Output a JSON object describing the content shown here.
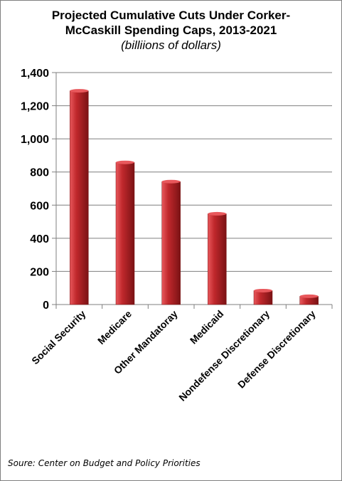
{
  "chart_title": {
    "line1": "Projected Cumulative Cuts Under Corker-",
    "line2": "McCaskill Spending Caps, 2013-2021",
    "subtitle": "(billiions of dollars)"
  },
  "source": "Soure: Center on Budget and Policy Priorities",
  "colors": {
    "bar_light": "#e8585c",
    "bar_mid": "#c0282c",
    "bar_dark": "#7a1214",
    "grid": "#7f7f7f",
    "axis": "#7f7f7f"
  },
  "chart_data": {
    "type": "bar",
    "title": "Projected Cumulative Cuts Under Corker-McCaskill Spending Caps, 2013-2021",
    "subtitle": "(billiions of dollars)",
    "categories": [
      "Social Security",
      "Medicare",
      "Other Mandatoray",
      "Medicaid",
      "Nondefense Discretionary",
      "Defense Discretionary"
    ],
    "values": [
      1290,
      858,
      742,
      548,
      84,
      50
    ],
    "ylim": [
      0,
      1400
    ],
    "yticks": [
      0,
      200,
      400,
      600,
      800,
      1000,
      1200,
      1400
    ],
    "ytick_labels": [
      "0",
      "200",
      "400",
      "600",
      "800",
      "1,000",
      "1,200",
      "1,400"
    ],
    "grid": true,
    "legend": "none"
  }
}
